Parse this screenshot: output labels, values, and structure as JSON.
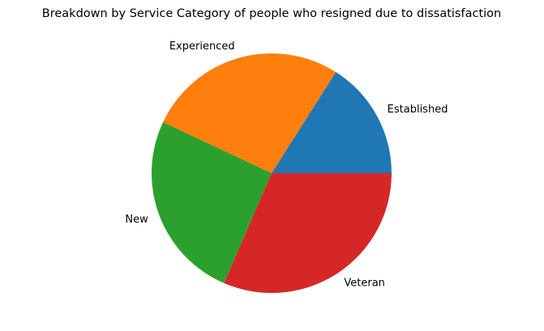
{
  "chart_data": {
    "type": "pie",
    "title": "Breakdown by Service Category of people who resigned due to dissatisfaction",
    "categories": [
      "Established",
      "Experienced",
      "New",
      "Veteran"
    ],
    "values": [
      16.0,
      27.0,
      25.5,
      31.5
    ],
    "colors": [
      "#1f77b4",
      "#ff7f0e",
      "#2ca02c",
      "#d62728"
    ],
    "start_angle_deg": 0,
    "direction": "counterclockwise",
    "legend": "none"
  }
}
